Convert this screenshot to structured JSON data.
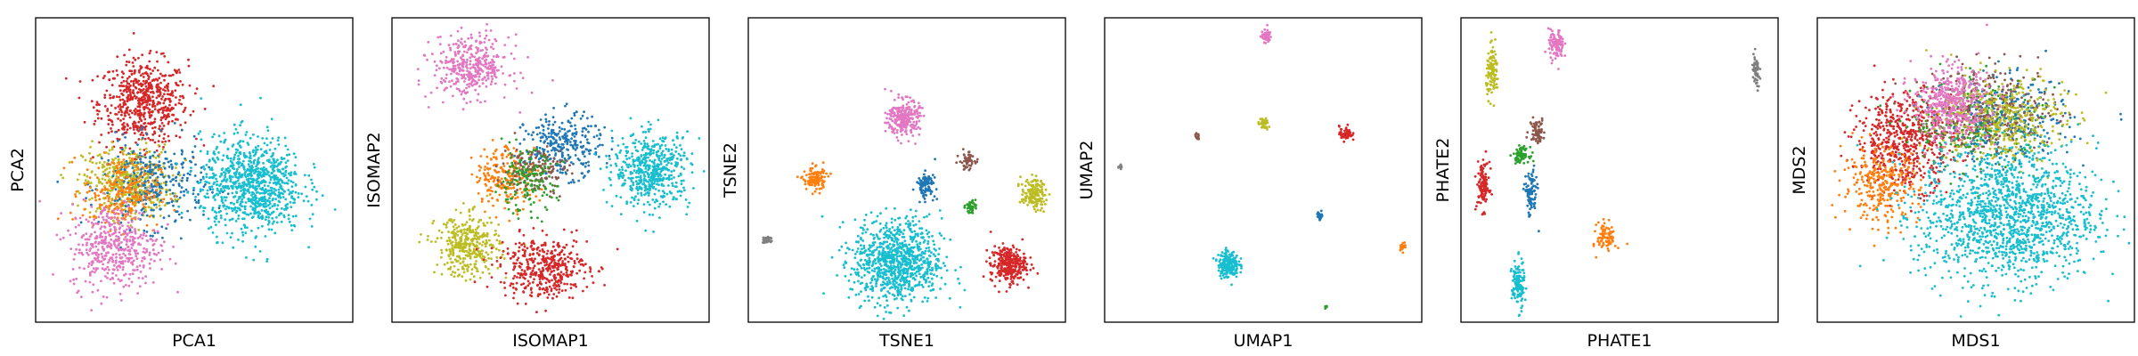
{
  "chart_data": [
    {
      "type": "scatter",
      "xlabel": "PCA1",
      "ylabel": "PCA2",
      "clusters": [
        {
          "color": "#d62728",
          "cx": 0.34,
          "cy": 0.72,
          "sx": 0.07,
          "sy": 0.07,
          "n": 600
        },
        {
          "color": "#bcbd22",
          "cx": 0.29,
          "cy": 0.46,
          "sx": 0.07,
          "sy": 0.06,
          "n": 450
        },
        {
          "color": "#1f77b4",
          "cx": 0.37,
          "cy": 0.45,
          "sx": 0.08,
          "sy": 0.07,
          "n": 350
        },
        {
          "color": "#ff7f0e",
          "cx": 0.27,
          "cy": 0.43,
          "sx": 0.06,
          "sy": 0.06,
          "n": 250
        },
        {
          "color": "#e377c2",
          "cx": 0.25,
          "cy": 0.25,
          "sx": 0.07,
          "sy": 0.07,
          "n": 450
        },
        {
          "color": "#17becf",
          "cx": 0.68,
          "cy": 0.45,
          "sx": 0.08,
          "sy": 0.08,
          "n": 900
        }
      ]
    },
    {
      "type": "scatter",
      "xlabel": "ISOMAP1",
      "ylabel": "ISOMAP2",
      "clusters": [
        {
          "color": "#e377c2",
          "cx": 0.25,
          "cy": 0.84,
          "sx": 0.06,
          "sy": 0.05,
          "n": 380
        },
        {
          "color": "#1f77b4",
          "cx": 0.54,
          "cy": 0.58,
          "sx": 0.06,
          "sy": 0.05,
          "n": 300
        },
        {
          "color": "#ff7f0e",
          "cx": 0.36,
          "cy": 0.48,
          "sx": 0.05,
          "sy": 0.05,
          "n": 220
        },
        {
          "color": "#8c564b",
          "cx": 0.45,
          "cy": 0.5,
          "sx": 0.05,
          "sy": 0.04,
          "n": 150
        },
        {
          "color": "#2ca02c",
          "cx": 0.42,
          "cy": 0.46,
          "sx": 0.05,
          "sy": 0.05,
          "n": 160
        },
        {
          "color": "#17becf",
          "cx": 0.82,
          "cy": 0.5,
          "sx": 0.06,
          "sy": 0.06,
          "n": 520
        },
        {
          "color": "#bcbd22",
          "cx": 0.24,
          "cy": 0.25,
          "sx": 0.05,
          "sy": 0.05,
          "n": 360
        },
        {
          "color": "#d62728",
          "cx": 0.48,
          "cy": 0.18,
          "sx": 0.07,
          "sy": 0.05,
          "n": 420
        }
      ]
    },
    {
      "type": "scatter",
      "xlabel": "TSNE1",
      "ylabel": "TSNE2",
      "clusters": [
        {
          "color": "#e377c2",
          "cx": 0.49,
          "cy": 0.67,
          "sx": 0.025,
          "sy": 0.03,
          "n": 250
        },
        {
          "color": "#ff7f0e",
          "cx": 0.21,
          "cy": 0.47,
          "sx": 0.018,
          "sy": 0.02,
          "n": 120
        },
        {
          "color": "#1f77b4",
          "cx": 0.56,
          "cy": 0.45,
          "sx": 0.015,
          "sy": 0.02,
          "n": 100
        },
        {
          "color": "#8c564b",
          "cx": 0.69,
          "cy": 0.53,
          "sx": 0.012,
          "sy": 0.015,
          "n": 60
        },
        {
          "color": "#bcbd22",
          "cx": 0.9,
          "cy": 0.42,
          "sx": 0.02,
          "sy": 0.025,
          "n": 150
        },
        {
          "color": "#2ca02c",
          "cx": 0.7,
          "cy": 0.38,
          "sx": 0.008,
          "sy": 0.01,
          "n": 40
        },
        {
          "color": "#7f7f7f",
          "cx": 0.06,
          "cy": 0.27,
          "sx": 0.007,
          "sy": 0.007,
          "n": 30
        },
        {
          "color": "#17becf",
          "cx": 0.47,
          "cy": 0.2,
          "sx": 0.07,
          "sy": 0.07,
          "n": 900
        },
        {
          "color": "#d62728",
          "cx": 0.82,
          "cy": 0.19,
          "sx": 0.028,
          "sy": 0.03,
          "n": 300
        }
      ]
    },
    {
      "type": "scatter",
      "xlabel": "UMAP1",
      "ylabel": "UMAP2",
      "clusters": [
        {
          "color": "#e377c2",
          "cx": 0.51,
          "cy": 0.94,
          "sx": 0.008,
          "sy": 0.01,
          "n": 60
        },
        {
          "color": "#bcbd22",
          "cx": 0.5,
          "cy": 0.65,
          "sx": 0.008,
          "sy": 0.01,
          "n": 40
        },
        {
          "color": "#d62728",
          "cx": 0.76,
          "cy": 0.62,
          "sx": 0.01,
          "sy": 0.012,
          "n": 60
        },
        {
          "color": "#8c564b",
          "cx": 0.29,
          "cy": 0.61,
          "sx": 0.004,
          "sy": 0.005,
          "n": 15
        },
        {
          "color": "#7f7f7f",
          "cx": 0.05,
          "cy": 0.51,
          "sx": 0.003,
          "sy": 0.004,
          "n": 8
        },
        {
          "color": "#1f77b4",
          "cx": 0.68,
          "cy": 0.35,
          "sx": 0.005,
          "sy": 0.007,
          "n": 25
        },
        {
          "color": "#ff7f0e",
          "cx": 0.94,
          "cy": 0.25,
          "sx": 0.005,
          "sy": 0.007,
          "n": 25
        },
        {
          "color": "#17becf",
          "cx": 0.39,
          "cy": 0.19,
          "sx": 0.016,
          "sy": 0.022,
          "n": 200
        },
        {
          "color": "#2ca02c",
          "cx": 0.7,
          "cy": 0.05,
          "sx": 0.003,
          "sy": 0.004,
          "n": 6
        }
      ]
    },
    {
      "type": "scatter",
      "xlabel": "PHATE1",
      "ylabel": "PHATE2",
      "clusters": [
        {
          "color": "#e377c2",
          "cx": 0.3,
          "cy": 0.91,
          "sx": 0.012,
          "sy": 0.025,
          "n": 100
        },
        {
          "color": "#bcbd22",
          "cx": 0.1,
          "cy": 0.82,
          "sx": 0.01,
          "sy": 0.04,
          "n": 110
        },
        {
          "color": "#7f7f7f",
          "cx": 0.93,
          "cy": 0.82,
          "sx": 0.006,
          "sy": 0.03,
          "n": 60
        },
        {
          "color": "#8c564b",
          "cx": 0.24,
          "cy": 0.63,
          "sx": 0.012,
          "sy": 0.02,
          "n": 70
        },
        {
          "color": "#2ca02c",
          "cx": 0.19,
          "cy": 0.55,
          "sx": 0.012,
          "sy": 0.012,
          "n": 70
        },
        {
          "color": "#d62728",
          "cx": 0.07,
          "cy": 0.45,
          "sx": 0.01,
          "sy": 0.04,
          "n": 110
        },
        {
          "color": "#1f77b4",
          "cx": 0.22,
          "cy": 0.42,
          "sx": 0.01,
          "sy": 0.04,
          "n": 90
        },
        {
          "color": "#ff7f0e",
          "cx": 0.46,
          "cy": 0.28,
          "sx": 0.015,
          "sy": 0.025,
          "n": 90
        },
        {
          "color": "#17becf",
          "cx": 0.18,
          "cy": 0.12,
          "sx": 0.01,
          "sy": 0.04,
          "n": 130
        }
      ]
    },
    {
      "type": "scatter",
      "xlabel": "MDS1",
      "ylabel": "MDS2",
      "clusters": [
        {
          "color": "#d62728",
          "cx": 0.28,
          "cy": 0.6,
          "sx": 0.08,
          "sy": 0.08,
          "n": 600
        },
        {
          "color": "#ff7f0e",
          "cx": 0.2,
          "cy": 0.45,
          "sx": 0.06,
          "sy": 0.06,
          "n": 300
        },
        {
          "color": "#2ca02c",
          "cx": 0.5,
          "cy": 0.65,
          "sx": 0.1,
          "sy": 0.07,
          "n": 300
        },
        {
          "color": "#1f77b4",
          "cx": 0.6,
          "cy": 0.66,
          "sx": 0.1,
          "sy": 0.07,
          "n": 300
        },
        {
          "color": "#8c564b",
          "cx": 0.55,
          "cy": 0.7,
          "sx": 0.1,
          "sy": 0.07,
          "n": 300
        },
        {
          "color": "#bcbd22",
          "cx": 0.58,
          "cy": 0.67,
          "sx": 0.1,
          "sy": 0.07,
          "n": 400
        },
        {
          "color": "#e377c2",
          "cx": 0.42,
          "cy": 0.72,
          "sx": 0.06,
          "sy": 0.06,
          "n": 450
        },
        {
          "color": "#17becf",
          "cx": 0.6,
          "cy": 0.35,
          "sx": 0.14,
          "sy": 0.11,
          "n": 1400
        }
      ]
    }
  ]
}
